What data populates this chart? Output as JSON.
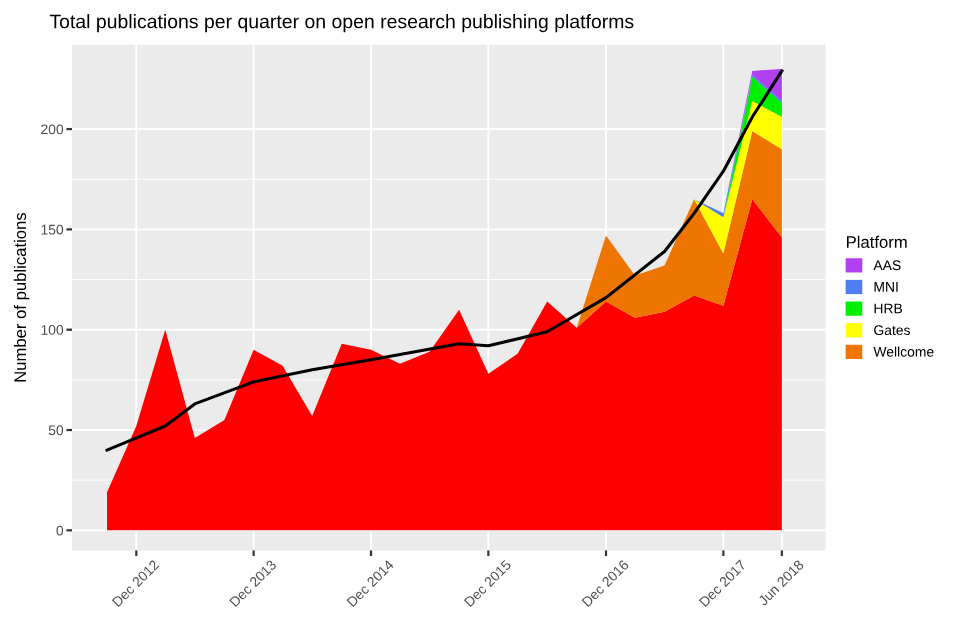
{
  "chart_data": {
    "type": "area",
    "title": "Total publications per quarter on open research publishing platforms",
    "ylabel": "Number of publications",
    "legend_title": "Platform",
    "stacked": true,
    "x": [
      "2012-09",
      "2012-12",
      "2013-03",
      "2013-06",
      "2013-09",
      "2013-12",
      "2014-03",
      "2014-06",
      "2014-09",
      "2014-12",
      "2015-03",
      "2015-06",
      "2015-09",
      "2015-12",
      "2016-03",
      "2016-06",
      "2016-09",
      "2016-12",
      "2017-03",
      "2017-06",
      "2017-09",
      "2017-12",
      "2018-03",
      "2018-06"
    ],
    "series": [
      {
        "color": "#ff0000",
        "values": [
          19,
          52,
          100,
          46,
          55,
          90,
          82,
          57,
          93,
          90,
          83,
          89,
          110,
          78,
          88,
          114,
          101,
          114,
          106,
          109,
          117,
          112,
          165,
          146
        ]
      },
      {
        "name": "Wellcome",
        "color": "#ee7600",
        "values": [
          null,
          null,
          null,
          null,
          null,
          null,
          null,
          null,
          null,
          null,
          null,
          null,
          null,
          null,
          null,
          null,
          0,
          33,
          21,
          23,
          48,
          26,
          34,
          44
        ]
      },
      {
        "name": "Gates",
        "color": "#ffff00",
        "values": [
          null,
          null,
          null,
          null,
          null,
          null,
          null,
          null,
          null,
          null,
          null,
          null,
          null,
          null,
          null,
          null,
          null,
          null,
          null,
          null,
          0,
          18,
          15,
          16
        ]
      },
      {
        "name": "HRB",
        "color": "#00ee00",
        "values": [
          null,
          null,
          null,
          null,
          null,
          null,
          null,
          null,
          null,
          null,
          null,
          null,
          null,
          null,
          null,
          null,
          null,
          null,
          null,
          null,
          null,
          0,
          12,
          7
        ]
      },
      {
        "name": "MNI",
        "color": "#4f7cf0",
        "values": [
          null,
          null,
          null,
          null,
          null,
          null,
          null,
          null,
          null,
          null,
          null,
          null,
          null,
          null,
          null,
          null,
          null,
          null,
          null,
          null,
          0,
          2,
          1,
          1
        ]
      },
      {
        "name": "AAS",
        "color": "#b040f0",
        "values": [
          null,
          null,
          null,
          null,
          null,
          null,
          null,
          null,
          null,
          null,
          null,
          null,
          null,
          null,
          null,
          null,
          null,
          null,
          null,
          null,
          null,
          0,
          2,
          16
        ]
      },
      {
        "type": "line",
        "color": "#000000",
        "x": [
          "2012-09",
          "2013-03",
          "2013-06",
          "2013-12",
          "2014-06",
          "2014-12",
          "2015-09",
          "2015-12",
          "2016-06",
          "2016-12",
          "2017-06",
          "2017-09",
          "2017-12",
          "2018-03",
          "2018-06"
        ],
        "values": [
          40,
          52,
          63,
          74,
          80,
          85,
          93,
          92,
          99,
          116,
          139,
          158,
          179,
          206,
          229
        ]
      }
    ],
    "xlim": [
      "2012-05-15",
      "2018-10-15"
    ],
    "xticks": [
      {
        "value": "2012-12",
        "label": "Dec 2012"
      },
      {
        "value": "2013-12",
        "label": "Dec 2013"
      },
      {
        "value": "2014-12",
        "label": "Dec 2014"
      },
      {
        "value": "2015-12",
        "label": "Dec 2015"
      },
      {
        "value": "2016-12",
        "label": "Dec 2016"
      },
      {
        "value": "2017-12",
        "label": "Dec 2017"
      },
      {
        "value": "2018-06",
        "label": "Jun 2018"
      }
    ],
    "ylim": [
      -10,
      242
    ],
    "yticks": [
      0,
      50,
      100,
      150,
      200
    ],
    "grid": true,
    "legend": "right"
  }
}
